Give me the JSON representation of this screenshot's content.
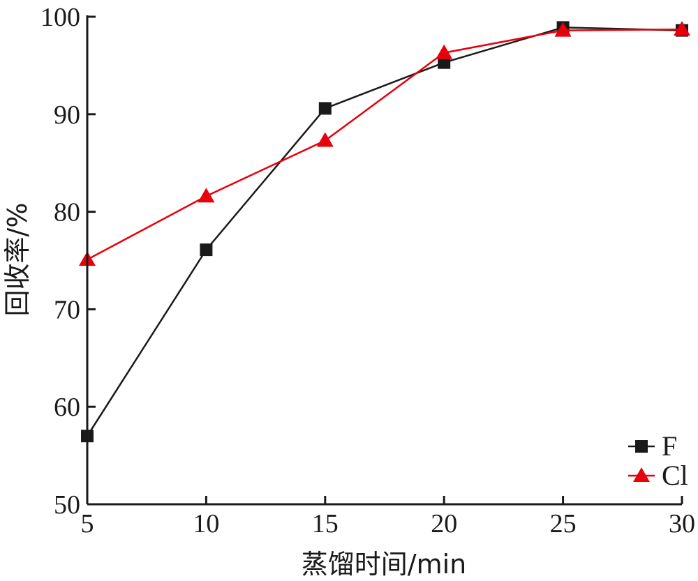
{
  "chart_data": {
    "type": "line",
    "title": "",
    "xlabel": "蒸馏时间/min",
    "ylabel": "回收率/%",
    "x": [
      5,
      10,
      15,
      20,
      25,
      30
    ],
    "xlim": [
      5,
      30
    ],
    "ylim": [
      50,
      100
    ],
    "xticks": [
      "5",
      "10",
      "15",
      "20",
      "25",
      "30"
    ],
    "yticks": [
      "50",
      "60",
      "70",
      "80",
      "90",
      "100"
    ],
    "grid": false,
    "legend_position": "bottom-right",
    "series": [
      {
        "name": "F",
        "values": [
          57.0,
          76.1,
          90.6,
          95.3,
          98.9,
          98.6
        ],
        "color": "#1a1a1a",
        "marker": "square"
      },
      {
        "name": "Cl",
        "values": [
          75.1,
          81.6,
          87.3,
          96.3,
          98.6,
          98.7
        ],
        "color": "#e8000b",
        "marker": "triangle"
      }
    ]
  }
}
